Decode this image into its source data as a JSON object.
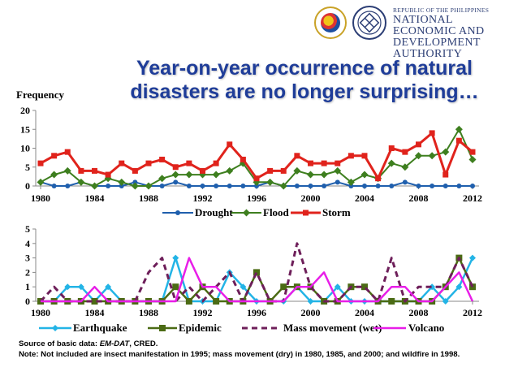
{
  "header": {
    "republic": "REPUBLIC OF THE PHILIPPINES",
    "org_line1": "NATIONAL ECONOMIC AND",
    "org_line2": "DEVELOPMENT AUTHORITY"
  },
  "title_line1": "Year-on-year occurrence of natural",
  "title_line2": "disasters are no longer surprising…",
  "ylabel": "Frequency",
  "source_prefix": "Source of basic data: ",
  "source_em": "EM-DAT",
  "source_suffix": ", CRED.",
  "note": "Note: Not included are insect manifestation in 1995; mass movement (dry) in 1980, 1985, and 2000; and wildfire in 1998.",
  "colors": {
    "drought": "#1f5fad",
    "flood": "#3e7f1f",
    "storm": "#e0231c",
    "earthquake": "#23b4e6",
    "epidemic": "#4b6b14",
    "mass": "#6e1f5a",
    "volcano": "#e81ee8"
  },
  "chart_data": [
    {
      "type": "line",
      "title": "",
      "ylabel": "Frequency",
      "ylim": [
        0,
        20
      ],
      "yticks": [
        "0",
        "5",
        "10",
        "15",
        "20"
      ],
      "xticks": [
        "1980",
        "1984",
        "1988",
        "1992",
        "1996",
        "2000",
        "2004",
        "2008",
        "2012"
      ],
      "x": [
        1980,
        1981,
        1982,
        1983,
        1984,
        1985,
        1986,
        1987,
        1988,
        1989,
        1990,
        1991,
        1992,
        1993,
        1994,
        1995,
        1996,
        1997,
        1998,
        1999,
        2000,
        2001,
        2002,
        2003,
        2004,
        2005,
        2006,
        2007,
        2008,
        2009,
        2010,
        2011,
        2012
      ],
      "series": [
        {
          "name": "Drought",
          "key": "drought",
          "values": [
            1,
            0,
            0,
            1,
            0,
            0,
            0,
            1,
            0,
            0,
            1,
            0,
            0,
            0,
            0,
            0,
            0,
            1,
            0,
            0,
            0,
            0,
            1,
            0,
            0,
            0,
            0,
            1,
            0,
            0,
            0,
            0,
            0
          ]
        },
        {
          "name": "Flood",
          "key": "flood",
          "values": [
            1,
            3,
            4,
            1,
            0,
            2,
            1,
            0,
            0,
            2,
            3,
            3,
            3,
            3,
            4,
            6,
            1,
            1,
            0,
            4,
            3,
            3,
            4,
            1,
            3,
            2,
            6,
            5,
            8,
            8,
            9,
            15,
            7
          ]
        },
        {
          "name": "Storm",
          "key": "storm",
          "values": [
            6,
            8,
            9,
            4,
            4,
            3,
            6,
            4,
            6,
            7,
            5,
            6,
            4,
            6,
            11,
            7,
            2,
            4,
            4,
            8,
            6,
            6,
            6,
            8,
            8,
            2,
            10,
            9,
            11,
            14,
            3,
            12,
            9
          ]
        }
      ]
    },
    {
      "type": "line",
      "title": "",
      "ylim": [
        0,
        5
      ],
      "yticks": [
        "0",
        "1",
        "2",
        "3",
        "4",
        "5"
      ],
      "xticks": [
        "1980",
        "1984",
        "1988",
        "1992",
        "1996",
        "2000",
        "2004",
        "2008",
        "2012"
      ],
      "x": [
        1980,
        1981,
        1982,
        1983,
        1984,
        1985,
        1986,
        1987,
        1988,
        1989,
        1990,
        1991,
        1992,
        1993,
        1994,
        1995,
        1996,
        1997,
        1998,
        1999,
        2000,
        2001,
        2002,
        2003,
        2004,
        2005,
        2006,
        2007,
        2008,
        2009,
        2010,
        2011,
        2012
      ],
      "series": [
        {
          "name": "Earthquake",
          "key": "earthquake",
          "values": [
            0,
            0,
            1,
            1,
            0,
            1,
            0,
            0,
            0,
            0,
            3,
            0,
            0,
            0,
            2,
            1,
            0,
            0,
            0,
            1,
            0,
            0,
            1,
            0,
            0,
            0,
            0,
            0,
            0,
            1,
            0,
            1,
            3
          ]
        },
        {
          "name": "Epidemic",
          "key": "epidemic",
          "values": [
            0,
            0,
            0,
            0,
            0,
            0,
            0,
            0,
            0,
            0,
            1,
            0,
            1,
            0,
            0,
            0,
            2,
            0,
            1,
            1,
            1,
            0,
            0,
            1,
            1,
            0,
            0,
            0,
            0,
            0,
            1,
            3,
            1
          ]
        },
        {
          "name": "Mass movement (wet)",
          "key": "mass",
          "values": [
            0,
            1,
            0,
            0,
            0,
            0,
            0,
            0,
            2,
            3,
            0,
            1,
            0,
            1,
            2,
            0,
            2,
            0,
            0,
            4,
            1,
            0,
            0,
            1,
            1,
            0,
            3,
            0,
            1,
            1,
            1,
            3,
            1
          ]
        },
        {
          "name": "Volcano",
          "key": "volcano",
          "values": [
            0,
            0,
            0,
            0,
            1,
            0,
            0,
            0,
            0,
            0,
            0,
            3,
            1,
            1,
            0,
            0,
            0,
            0,
            0,
            1,
            1,
            2,
            0,
            0,
            0,
            0,
            1,
            1,
            0,
            0,
            1,
            2,
            0
          ]
        }
      ]
    }
  ]
}
